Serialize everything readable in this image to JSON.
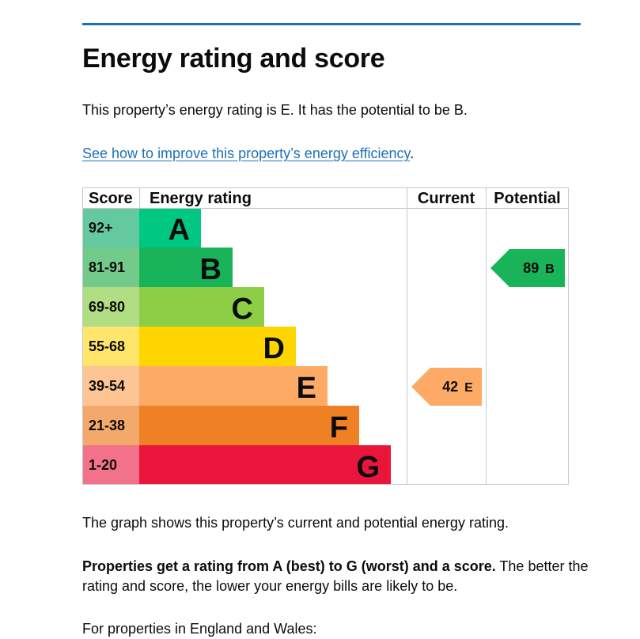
{
  "page": {
    "title": "Energy rating and score",
    "summary": "This property’s energy rating is E. It has the potential to be B.",
    "improve_link": "See how to improve this property’s energy efficiency",
    "improve_suffix": ".",
    "graph_note": "The graph shows this property’s current and potential energy rating.",
    "rating_note_bold": "Properties get a rating from A (best) to G (worst) and a score.",
    "rating_note_rest": " The better the rating and score, the lower your energy bills are likely to be.",
    "eng_wales": "For properties in England and Wales:"
  },
  "chart_data": {
    "type": "table",
    "headers": {
      "score": "Score",
      "rating": "Energy rating",
      "current": "Current",
      "potential": "Potential"
    },
    "bands": [
      {
        "letter": "A",
        "range": "92+",
        "bar_color": "#00c781",
        "score_color": "#64c99f"
      },
      {
        "letter": "B",
        "range": "81-91",
        "bar_color": "#19b459",
        "score_color": "#72cb8b"
      },
      {
        "letter": "C",
        "range": "69-80",
        "bar_color": "#8dce46",
        "score_color": "#b1de82"
      },
      {
        "letter": "D",
        "range": "55-68",
        "bar_color": "#ffd500",
        "score_color": "#ffe56a"
      },
      {
        "letter": "E",
        "range": "39-54",
        "bar_color": "#fcaa65",
        "score_color": "#fdc494"
      },
      {
        "letter": "F",
        "range": "21-38",
        "bar_color": "#ef8023",
        "score_color": "#f4a96c"
      },
      {
        "letter": "G",
        "range": "1-20",
        "bar_color": "#e9153b",
        "score_color": "#f27389"
      }
    ],
    "current": {
      "score": 42,
      "letter": "E",
      "band_index": 4,
      "color": "#fcaa65"
    },
    "potential": {
      "score": 89,
      "letter": "B",
      "band_index": 1,
      "color": "#19b459"
    }
  }
}
